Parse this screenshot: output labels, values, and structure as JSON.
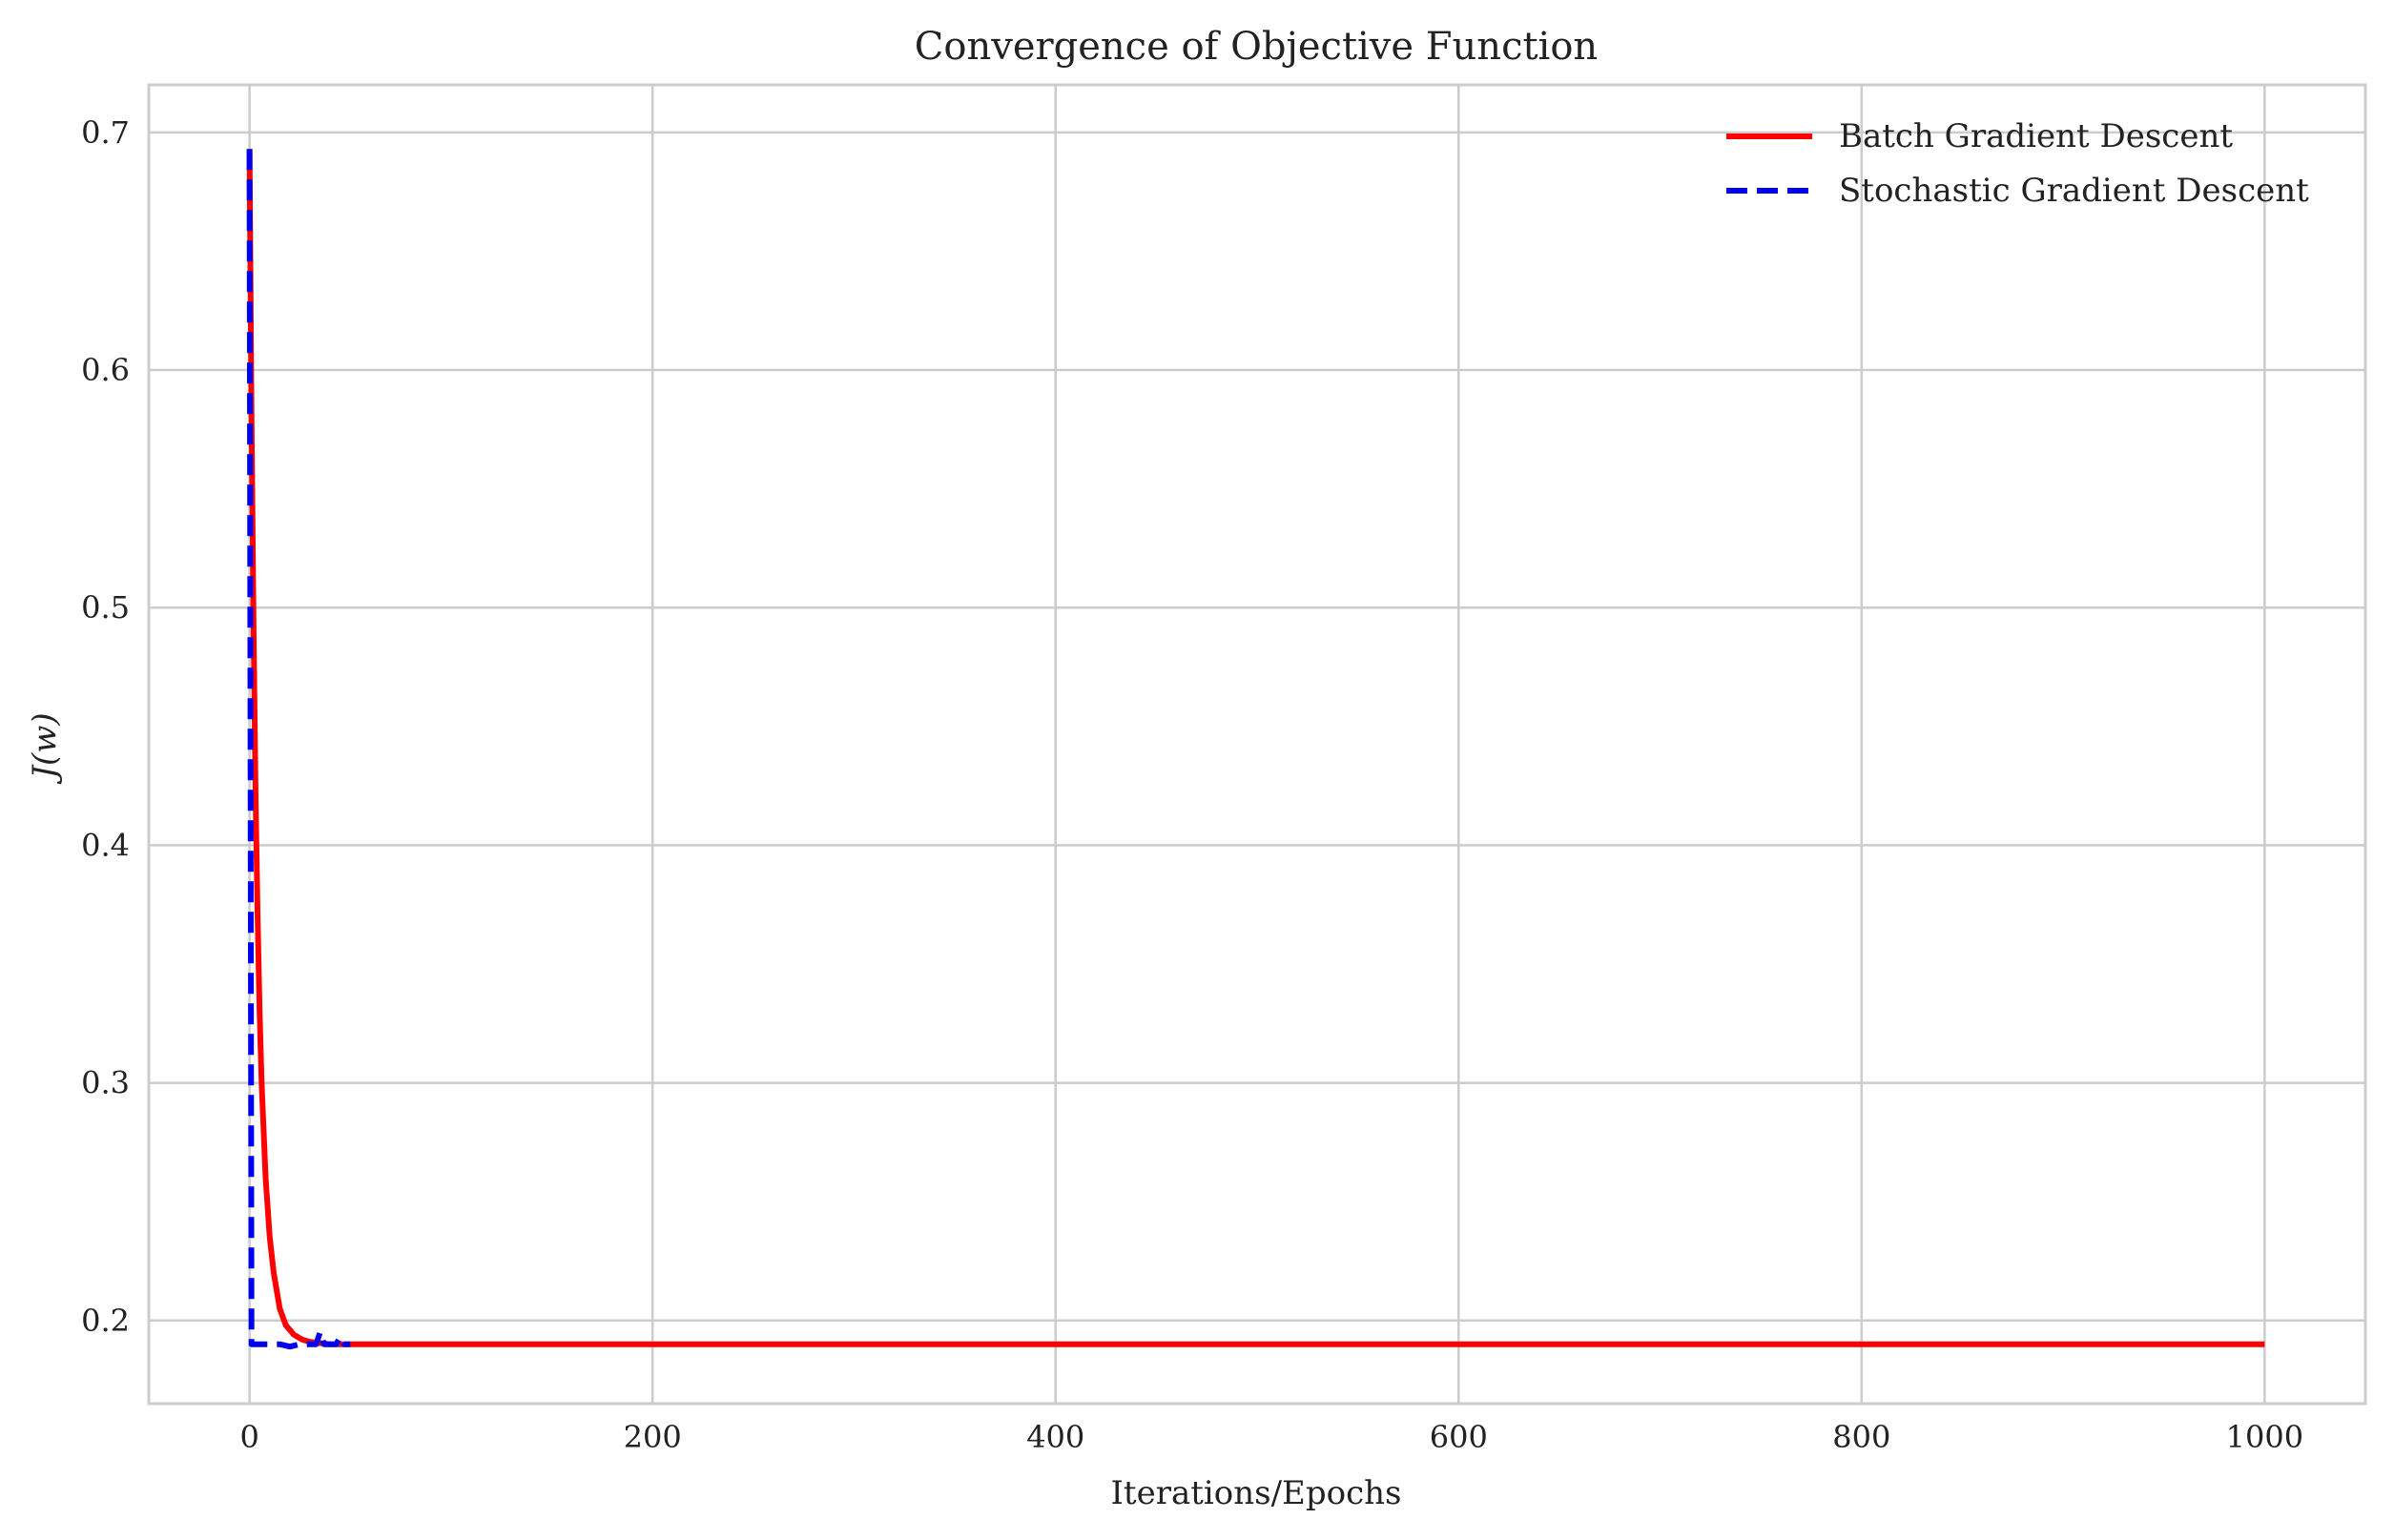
{
  "chart_data": {
    "type": "line",
    "title": "Convergence of Objective Function",
    "xlabel": "Iterations/Epochs",
    "ylabel": "J(w)",
    "xlim": [
      -50,
      1050
    ],
    "ylim": [
      0.165,
      0.72
    ],
    "xticks": [
      0,
      200,
      400,
      600,
      800,
      1000
    ],
    "yticks": [
      0.2,
      0.3,
      0.4,
      0.5,
      0.6,
      0.7
    ],
    "xtick_labels": [
      "0",
      "200",
      "400",
      "600",
      "800",
      "1000"
    ],
    "ytick_labels": [
      "0.2",
      "0.3",
      "0.4",
      "0.5",
      "0.6",
      "0.7"
    ],
    "grid": true,
    "legend_position": "top-right",
    "series": [
      {
        "name": "Batch Gradient Descent",
        "color": "#ff0000",
        "style": "solid",
        "x": [
          0,
          1,
          2,
          3,
          4,
          5,
          6,
          7,
          8,
          10,
          12,
          15,
          18,
          22,
          26,
          30,
          35,
          40,
          50,
          60,
          80,
          100,
          200,
          400,
          600,
          800,
          1000
        ],
        "y": [
          0.693,
          0.58,
          0.49,
          0.42,
          0.37,
          0.33,
          0.3,
          0.28,
          0.26,
          0.235,
          0.22,
          0.205,
          0.198,
          0.194,
          0.192,
          0.191,
          0.1905,
          0.19,
          0.19,
          0.19,
          0.19,
          0.19,
          0.19,
          0.19,
          0.19,
          0.19,
          0.19
        ]
      },
      {
        "name": "Stochastic Gradient Descent",
        "color": "#0000ee",
        "style": "dashed",
        "x": [
          0,
          1,
          2,
          5,
          10,
          15,
          20,
          25,
          30,
          33,
          35,
          37,
          40,
          43,
          45,
          47,
          50
        ],
        "y": [
          0.693,
          0.19,
          0.19,
          0.19,
          0.19,
          0.19,
          0.189,
          0.19,
          0.19,
          0.19,
          0.195,
          0.19,
          0.19,
          0.19,
          0.193,
          0.19,
          0.19
        ]
      }
    ]
  }
}
